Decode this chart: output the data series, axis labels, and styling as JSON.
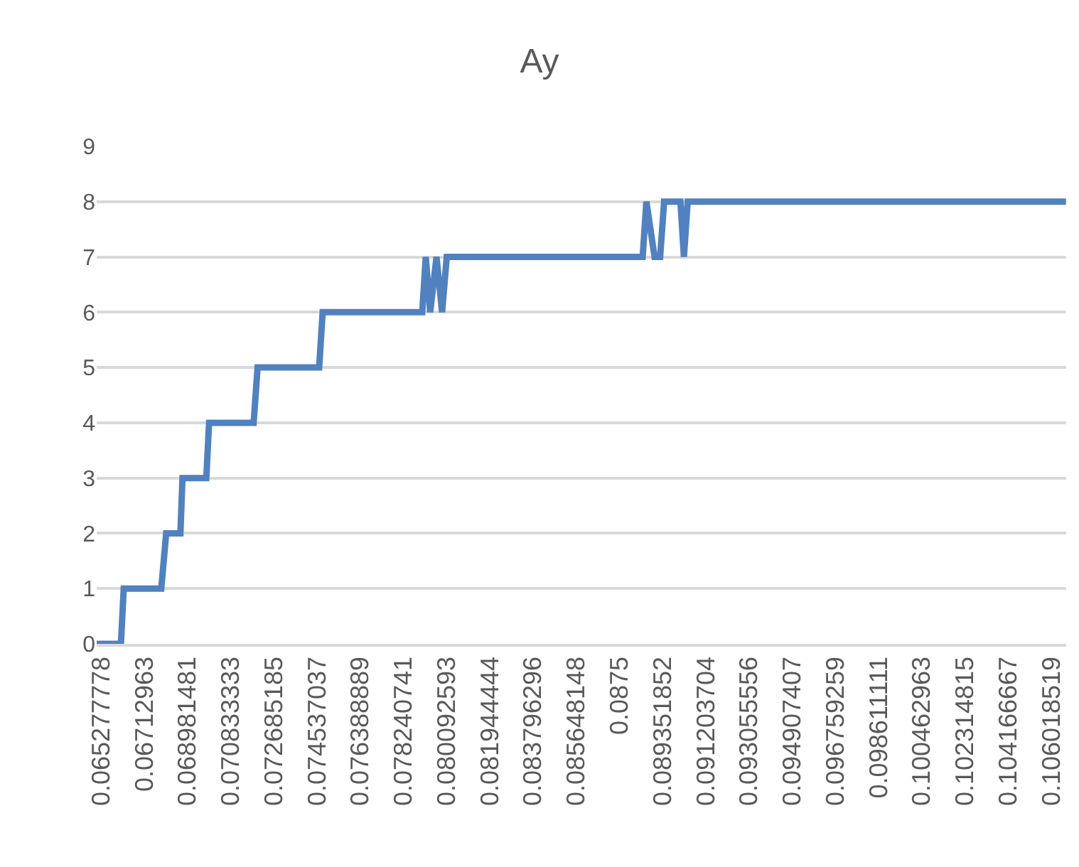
{
  "chart_data": {
    "type": "line",
    "title": "Ay",
    "x": [
      0.06509,
      0.06613,
      0.06625,
      0.06786,
      0.06807,
      0.06868,
      0.06877,
      0.06979,
      0.06991,
      0.07182,
      0.07199,
      0.07463,
      0.07478,
      0.07905,
      0.0792,
      0.07939,
      0.07966,
      0.0799,
      0.0801,
      0.0885,
      0.08866,
      0.08901,
      0.08925,
      0.08942,
      0.09012,
      0.09027,
      0.09043,
      0.10665
    ],
    "series": [
      {
        "color": "#5181bf",
        "values": [
          0,
          0,
          1,
          1,
          2,
          2,
          3,
          3,
          4,
          4,
          5,
          5,
          6,
          6,
          7,
          6,
          7,
          6,
          7,
          7,
          8,
          7,
          7,
          8,
          8,
          7,
          8,
          8
        ]
      }
    ],
    "xlim": [
      0.06509,
      0.10666
    ],
    "xticks": [
      0.065277778,
      0.06712963,
      0.068981481,
      0.070833333,
      0.072685185,
      0.074537037,
      0.076388889,
      0.078240741,
      0.080092593,
      0.081944444,
      0.083796296,
      0.085648148,
      0.0875,
      0.089351852,
      0.091203704,
      0.093055556,
      0.094907407,
      0.096759259,
      0.098611111,
      0.100462963,
      0.102314815,
      0.104166667,
      0.106018519
    ],
    "ylim": [
      0,
      9
    ],
    "yticks": [
      0,
      1,
      2,
      3,
      4,
      5,
      6,
      7,
      8,
      9
    ],
    "grid": "y",
    "marker": "none",
    "line_style": "solid"
  }
}
